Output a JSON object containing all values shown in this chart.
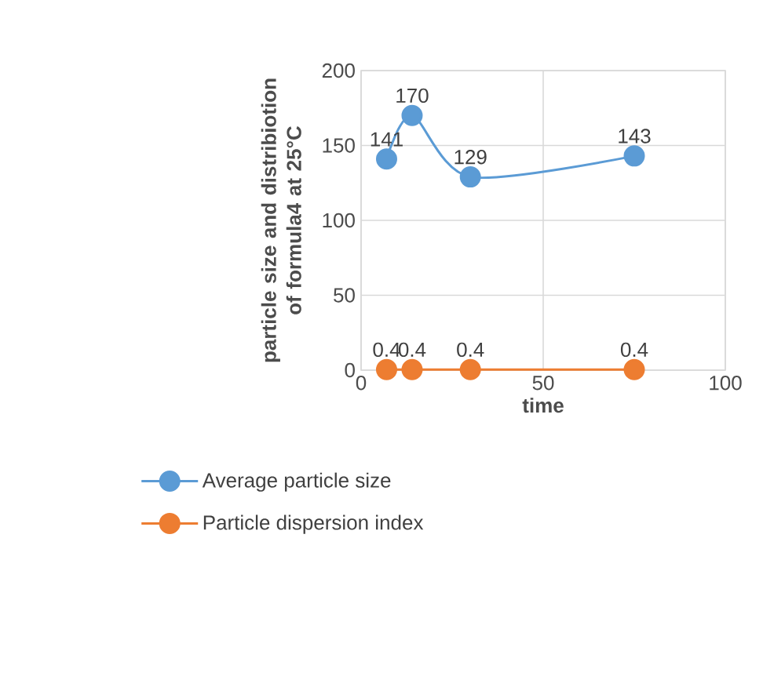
{
  "chart_data": {
    "type": "line",
    "xlabel": "time",
    "ylabel": "particle size and distribiotion of formula4 at 25°C",
    "x": [
      7,
      14,
      30,
      75
    ],
    "series": [
      {
        "name": "Average particle size",
        "color": "#5b9bd5",
        "values": [
          141,
          170,
          129,
          143
        ]
      },
      {
        "name": "Particle dispersion index",
        "color": "#ed7d31",
        "values": [
          0.4,
          0.4,
          0.4,
          0.4
        ]
      }
    ],
    "xlim": [
      0,
      100
    ],
    "ylim": [
      0,
      200
    ],
    "xticks": [
      0,
      50,
      100
    ],
    "yticks": [
      0,
      50,
      100,
      150,
      200
    ],
    "grid": true,
    "legend": "bottom",
    "marker": "circle",
    "line_style": "solid",
    "data_labels": true
  }
}
